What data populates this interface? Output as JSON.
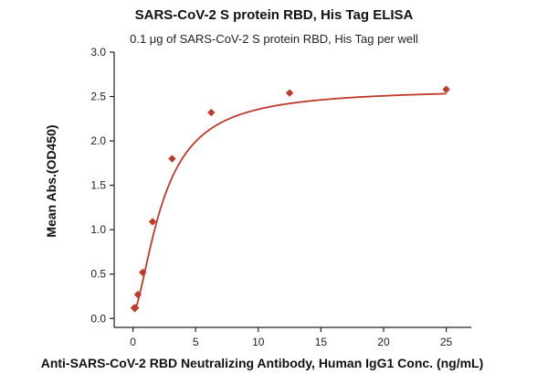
{
  "chart_data": {
    "type": "scatter",
    "title": "SARS-CoV-2 S protein RBD, His Tag ELISA",
    "subtitle": "0.1 μg of SARS-CoV-2 S protein RBD, His Tag per well",
    "xlabel": "Anti-SARS-CoV-2 RBD Neutralizing Antibody, Human IgG1 Conc. (ng/mL)",
    "ylabel": "Mean Abs.(OD450)",
    "xlim": [
      -1.5,
      27
    ],
    "ylim": [
      -0.1,
      3.0
    ],
    "xticks": [
      0,
      5,
      10,
      15,
      20,
      25
    ],
    "xtick_labels": [
      "0",
      "5",
      "10",
      "15",
      "20",
      "25"
    ],
    "yticks": [
      0.0,
      0.5,
      1.0,
      1.5,
      2.0,
      2.5,
      3.0
    ],
    "ytick_labels": [
      "0.0",
      "0.5",
      "1.0",
      "1.5",
      "2.0",
      "2.5",
      "3.0"
    ],
    "series": [
      {
        "name": "data",
        "marker": "diamond",
        "x": [
          0.098,
          0.195,
          0.39,
          0.78,
          1.5625,
          3.125,
          6.25,
          12.5,
          25
        ],
        "y": [
          0.12,
          0.12,
          0.27,
          0.52,
          1.09,
          1.8,
          2.32,
          2.54,
          2.58
        ]
      }
    ],
    "fit_curve": {
      "type": "4PL",
      "bottom": 0.06,
      "top": 2.59,
      "ec50": 2.4,
      "hill": 1.6
    },
    "grid": false,
    "colors": {
      "series": "#c0392b",
      "axis": "#222222"
    }
  }
}
